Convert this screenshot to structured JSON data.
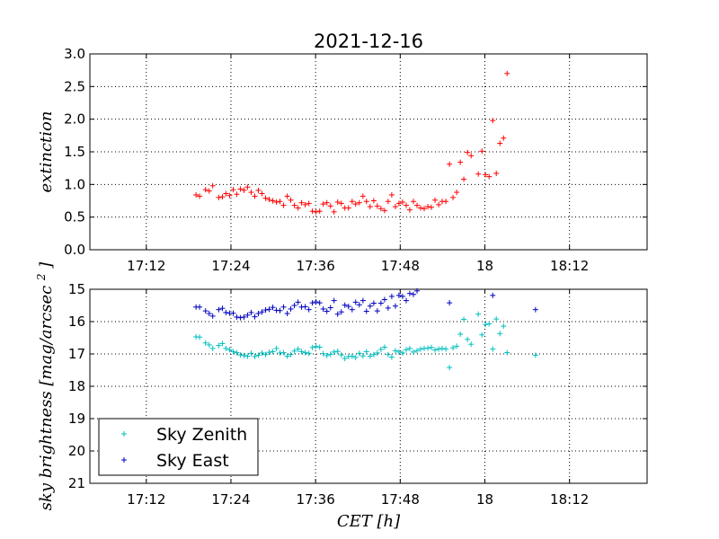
{
  "chart_data": [
    {
      "type": "scatter",
      "title": "2021-12-16",
      "ylabel": "extinction",
      "xlabel": "",
      "xlim": [
        "17:04",
        "18:23"
      ],
      "ylim": [
        0,
        3
      ],
      "grid": true,
      "marker": "+",
      "x_tick_labels": [
        "17:12",
        "17:24",
        "17:36",
        "17:48",
        "18",
        "18:12"
      ],
      "x_ticks": [
        "17:12",
        "17:24",
        "17:36",
        "17:48",
        "18:00",
        "18:12"
      ],
      "y_tick_labels": [
        "0.0",
        "0.5",
        "1.0",
        "1.5",
        "2.0",
        "2.5",
        "3.0"
      ],
      "y_ticks": [
        0,
        0.5,
        1.0,
        1.5,
        2.0,
        2.5,
        3.0
      ],
      "series": [
        {
          "color": "#ff0000",
          "points": [
            [
              "17:19:03",
              0.84
            ],
            [
              "17:19:33",
              0.82
            ],
            [
              "17:20:24",
              0.92
            ],
            [
              "17:20:55",
              0.9
            ],
            [
              "17:21:25",
              0.98
            ],
            [
              "17:22:16",
              0.8
            ],
            [
              "17:22:47",
              0.81
            ],
            [
              "17:23:17",
              0.86
            ],
            [
              "17:23:48",
              0.83
            ],
            [
              "17:24:19",
              0.92
            ],
            [
              "17:24:49",
              0.85
            ],
            [
              "17:25:20",
              0.93
            ],
            [
              "17:25:51",
              0.91
            ],
            [
              "17:26:21",
              0.96
            ],
            [
              "17:26:52",
              0.88
            ],
            [
              "17:27:23",
              0.82
            ],
            [
              "17:27:53",
              0.91
            ],
            [
              "17:28:24",
              0.86
            ],
            [
              "17:28:55",
              0.79
            ],
            [
              "17:29:25",
              0.77
            ],
            [
              "17:29:56",
              0.75
            ],
            [
              "17:30:27",
              0.73
            ],
            [
              "17:30:57",
              0.74
            ],
            [
              "17:31:28",
              0.68
            ],
            [
              "17:31:59",
              0.82
            ],
            [
              "17:32:29",
              0.76
            ],
            [
              "17:33:00",
              0.68
            ],
            [
              "17:33:31",
              0.64
            ],
            [
              "17:34:01",
              0.72
            ],
            [
              "17:34:32",
              0.69
            ],
            [
              "17:35:03",
              0.71
            ],
            [
              "17:35:33",
              0.59
            ],
            [
              "17:36:04",
              0.58
            ],
            [
              "17:36:35",
              0.59
            ],
            [
              "17:37:05",
              0.7
            ],
            [
              "17:37:36",
              0.72
            ],
            [
              "17:38:07",
              0.67
            ],
            [
              "17:38:37",
              0.58
            ],
            [
              "17:39:08",
              0.73
            ],
            [
              "17:39:39",
              0.71
            ],
            [
              "17:40:09",
              0.64
            ],
            [
              "17:40:40",
              0.64
            ],
            [
              "17:41:11",
              0.74
            ],
            [
              "17:41:41",
              0.7
            ],
            [
              "17:42:12",
              0.72
            ],
            [
              "17:42:43",
              0.82
            ],
            [
              "17:43:13",
              0.74
            ],
            [
              "17:43:44",
              0.66
            ],
            [
              "17:44:15",
              0.75
            ],
            [
              "17:44:45",
              0.67
            ],
            [
              "17:45:16",
              0.63
            ],
            [
              "17:45:47",
              0.6
            ],
            [
              "17:46:17",
              0.74
            ],
            [
              "17:46:48",
              0.84
            ],
            [
              "17:47:19",
              0.66
            ],
            [
              "17:47:49",
              0.71
            ],
            [
              "17:48:20",
              0.73
            ],
            [
              "17:48:51",
              0.68
            ],
            [
              "17:49:21",
              0.61
            ],
            [
              "17:49:52",
              0.74
            ],
            [
              "17:50:23",
              0.68
            ],
            [
              "17:50:53",
              0.64
            ],
            [
              "17:51:24",
              0.63
            ],
            [
              "17:51:55",
              0.66
            ],
            [
              "17:52:25",
              0.65
            ],
            [
              "17:52:56",
              0.76
            ],
            [
              "17:53:27",
              0.69
            ],
            [
              "17:53:57",
              0.74
            ],
            [
              "17:54:28",
              0.74
            ],
            [
              "17:54:59",
              1.31
            ],
            [
              "17:55:29",
              0.8
            ],
            [
              "17:56:00",
              0.88
            ],
            [
              "17:56:31",
              1.34
            ],
            [
              "17:57:01",
              1.08
            ],
            [
              "17:57:32",
              1.49
            ],
            [
              "17:58:03",
              1.44
            ],
            [
              "17:59:04",
              1.16
            ],
            [
              "17:59:35",
              1.51
            ],
            [
              "18:00:05",
              1.15
            ],
            [
              "18:00:36",
              1.12
            ],
            [
              "18:01:07",
              1.98
            ],
            [
              "18:01:37",
              1.17
            ],
            [
              "18:02:08",
              1.63
            ],
            [
              "18:02:39",
              1.71
            ],
            [
              "18:03:09",
              2.7
            ]
          ]
        }
      ]
    },
    {
      "type": "scatter",
      "title": "",
      "ylabel": "sky brightness [mag/arcsec^2 ]",
      "xlabel": "CET [h]",
      "xlim": [
        "17:04",
        "18:23"
      ],
      "ylim": [
        21,
        15
      ],
      "y_inverted": true,
      "grid": true,
      "marker": "+",
      "legend_position": "bottom-left",
      "x_tick_labels": [
        "17:12",
        "17:24",
        "17:36",
        "17:48",
        "18",
        "18:12"
      ],
      "x_ticks": [
        "17:12",
        "17:24",
        "17:36",
        "17:48",
        "18:00",
        "18:12"
      ],
      "y_tick_labels": [
        "15",
        "16",
        "17",
        "18",
        "19",
        "20",
        "21"
      ],
      "y_ticks": [
        15,
        16,
        17,
        18,
        19,
        20,
        21
      ],
      "series": [
        {
          "name": "Sky Zenith",
          "color": "#00bfbf",
          "points": [
            [
              "17:19:03",
              16.47
            ],
            [
              "17:19:33",
              16.48
            ],
            [
              "17:20:24",
              16.66
            ],
            [
              "17:20:55",
              16.72
            ],
            [
              "17:21:25",
              16.83
            ],
            [
              "17:22:16",
              16.74
            ],
            [
              "17:22:47",
              16.68
            ],
            [
              "17:23:17",
              16.83
            ],
            [
              "17:23:48",
              16.87
            ],
            [
              "17:24:19",
              16.93
            ],
            [
              "17:24:49",
              16.96
            ],
            [
              "17:25:20",
              17.03
            ],
            [
              "17:25:51",
              17.05
            ],
            [
              "17:26:21",
              17.07
            ],
            [
              "17:26:52",
              16.98
            ],
            [
              "17:27:23",
              17.08
            ],
            [
              "17:27:53",
              17.04
            ],
            [
              "17:28:24",
              16.97
            ],
            [
              "17:28:55",
              17.02
            ],
            [
              "17:29:25",
              16.95
            ],
            [
              "17:29:56",
              16.93
            ],
            [
              "17:30:27",
              16.83
            ],
            [
              "17:30:57",
              16.97
            ],
            [
              "17:31:28",
              16.96
            ],
            [
              "17:31:59",
              17.07
            ],
            [
              "17:32:29",
              17.02
            ],
            [
              "17:33:00",
              16.91
            ],
            [
              "17:33:31",
              16.85
            ],
            [
              "17:34:01",
              16.93
            ],
            [
              "17:34:32",
              16.96
            ],
            [
              "17:35:03",
              16.98
            ],
            [
              "17:35:33",
              16.8
            ],
            [
              "17:36:04",
              16.77
            ],
            [
              "17:36:35",
              16.79
            ],
            [
              "17:37:05",
              16.99
            ],
            [
              "17:37:36",
              17.05
            ],
            [
              "17:38:07",
              17.01
            ],
            [
              "17:38:37",
              16.94
            ],
            [
              "17:39:08",
              16.92
            ],
            [
              "17:39:39",
              17.03
            ],
            [
              "17:40:09",
              17.14
            ],
            [
              "17:40:40",
              17.08
            ],
            [
              "17:41:11",
              17.07
            ],
            [
              "17:41:41",
              17.11
            ],
            [
              "17:42:12",
              16.98
            ],
            [
              "17:42:43",
              17.06
            ],
            [
              "17:43:13",
              16.93
            ],
            [
              "17:43:44",
              17.07
            ],
            [
              "17:44:15",
              17.02
            ],
            [
              "17:44:45",
              16.97
            ],
            [
              "17:45:16",
              16.86
            ],
            [
              "17:45:47",
              16.79
            ],
            [
              "17:46:17",
              17.02
            ],
            [
              "17:46:48",
              17.1
            ],
            [
              "17:47:19",
              16.9
            ],
            [
              "17:47:49",
              16.94
            ],
            [
              "17:48:20",
              16.97
            ],
            [
              "17:48:51",
              16.87
            ],
            [
              "17:49:21",
              16.83
            ],
            [
              "17:49:52",
              16.94
            ],
            [
              "17:50:23",
              16.9
            ],
            [
              "17:50:53",
              16.85
            ],
            [
              "17:51:24",
              16.83
            ],
            [
              "17:51:55",
              16.82
            ],
            [
              "17:52:25",
              16.8
            ],
            [
              "17:52:56",
              16.88
            ],
            [
              "17:53:27",
              16.85
            ],
            [
              "17:53:57",
              16.83
            ],
            [
              "17:54:28",
              16.85
            ],
            [
              "17:54:59",
              17.42
            ],
            [
              "17:55:29",
              16.81
            ],
            [
              "17:56:00",
              16.76
            ],
            [
              "17:56:31",
              16.39
            ],
            [
              "17:57:01",
              15.93
            ],
            [
              "17:57:32",
              16.55
            ],
            [
              "17:58:03",
              16.7
            ],
            [
              "17:59:04",
              15.77
            ],
            [
              "17:59:35",
              16.41
            ],
            [
              "18:00:05",
              16.09
            ],
            [
              "18:00:36",
              16.07
            ],
            [
              "18:01:07",
              16.85
            ],
            [
              "18:01:37",
              15.92
            ],
            [
              "18:02:08",
              16.37
            ],
            [
              "18:02:39",
              16.14
            ],
            [
              "18:03:09",
              16.96
            ],
            [
              "18:07:11",
              17.04
            ]
          ]
        },
        {
          "name": "Sky East",
          "color": "#0000bf",
          "points": [
            [
              "17:19:03",
              15.55
            ],
            [
              "17:19:33",
              15.55
            ],
            [
              "17:20:24",
              15.67
            ],
            [
              "17:20:55",
              15.75
            ],
            [
              "17:21:25",
              15.83
            ],
            [
              "17:22:16",
              15.63
            ],
            [
              "17:22:47",
              15.59
            ],
            [
              "17:23:17",
              15.72
            ],
            [
              "17:23:48",
              15.74
            ],
            [
              "17:24:19",
              15.74
            ],
            [
              "17:24:49",
              15.86
            ],
            [
              "17:25:20",
              15.88
            ],
            [
              "17:25:51",
              15.86
            ],
            [
              "17:26:21",
              15.8
            ],
            [
              "17:26:52",
              15.72
            ],
            [
              "17:27:23",
              15.85
            ],
            [
              "17:27:53",
              15.75
            ],
            [
              "17:28:24",
              15.7
            ],
            [
              "17:28:55",
              15.64
            ],
            [
              "17:29:25",
              15.62
            ],
            [
              "17:29:56",
              15.56
            ],
            [
              "17:30:27",
              15.65
            ],
            [
              "17:30:57",
              15.66
            ],
            [
              "17:31:28",
              15.55
            ],
            [
              "17:31:59",
              15.75
            ],
            [
              "17:32:29",
              15.61
            ],
            [
              "17:33:00",
              15.5
            ],
            [
              "17:33:31",
              15.4
            ],
            [
              "17:34:01",
              15.55
            ],
            [
              "17:34:32",
              15.54
            ],
            [
              "17:35:03",
              15.63
            ],
            [
              "17:35:33",
              15.42
            ],
            [
              "17:36:04",
              15.39
            ],
            [
              "17:36:35",
              15.42
            ],
            [
              "17:37:05",
              15.61
            ],
            [
              "17:37:36",
              15.68
            ],
            [
              "17:38:07",
              15.57
            ],
            [
              "17:38:37",
              15.35
            ],
            [
              "17:39:08",
              15.77
            ],
            [
              "17:39:39",
              15.7
            ],
            [
              "17:40:09",
              15.49
            ],
            [
              "17:40:40",
              15.53
            ],
            [
              "17:41:11",
              15.63
            ],
            [
              "17:41:41",
              15.4
            ],
            [
              "17:42:12",
              15.48
            ],
            [
              "17:42:43",
              15.35
            ],
            [
              "17:43:13",
              15.68
            ],
            [
              "17:43:44",
              15.52
            ],
            [
              "17:44:15",
              15.43
            ],
            [
              "17:44:45",
              15.67
            ],
            [
              "17:45:16",
              15.43
            ],
            [
              "17:45:47",
              15.32
            ],
            [
              "17:46:17",
              15.58
            ],
            [
              "17:46:48",
              15.22
            ],
            [
              "17:47:19",
              15.52
            ],
            [
              "17:47:49",
              15.19
            ],
            [
              "17:48:20",
              15.22
            ],
            [
              "17:48:51",
              15.35
            ],
            [
              "17:49:21",
              15.13
            ],
            [
              "17:49:52",
              15.16
            ],
            [
              "17:50:23",
              15.05
            ],
            [
              "17:54:59",
              15.42
            ],
            [
              "18:01:07",
              15.19
            ],
            [
              "18:07:11",
              15.63
            ]
          ]
        }
      ]
    }
  ]
}
